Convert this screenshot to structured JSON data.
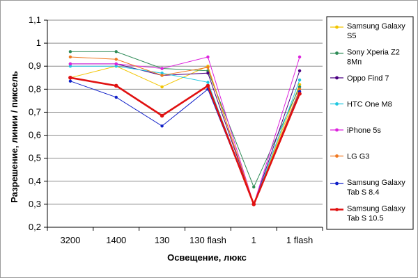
{
  "chart_data": {
    "type": "line",
    "title": "",
    "xlabel": "Освещение, люкс",
    "ylabel": "Разрешение, линии / пиксель",
    "categories": [
      "3200",
      "1400",
      "130",
      "130 flash",
      "1",
      "1 flash"
    ],
    "y_ticks": [
      "0,2",
      "0,3",
      "0,4",
      "0,5",
      "0,6",
      "0,7",
      "0,8",
      "0,9",
      "1",
      "1,1"
    ],
    "ylim": [
      0.2,
      1.1
    ],
    "grid": "horizontal",
    "legend_position": "right",
    "series": [
      {
        "name_lines": [
          "Samsung Galaxy",
          "S5"
        ],
        "color": "#f2c500",
        "values": [
          0.85,
          0.9,
          0.81,
          0.9,
          0.3,
          0.82
        ]
      },
      {
        "name_lines": [
          "Sony Xperia Z2",
          "8Мп"
        ],
        "color": "#2e8b57",
        "values": [
          0.963,
          0.963,
          0.89,
          0.88,
          0.375,
          0.81
        ]
      },
      {
        "name_lines": [
          "Oppo Find 7"
        ],
        "color": "#4b0082",
        "values": [
          0.91,
          0.91,
          0.86,
          0.87,
          0.3,
          0.88
        ]
      },
      {
        "name_lines": [
          "HTC One M8"
        ],
        "color": "#1fc7e0",
        "values": [
          0.9,
          0.9,
          0.87,
          0.83,
          0.3,
          0.84
        ]
      },
      {
        "name_lines": [
          "iPhone 5s"
        ],
        "color": "#dd22dd",
        "values": [
          0.91,
          0.91,
          0.89,
          0.94,
          0.3,
          0.94
        ]
      },
      {
        "name_lines": [
          "LG G3"
        ],
        "color": "#f07820",
        "values": [
          0.94,
          0.93,
          0.86,
          0.895,
          0.3,
          0.8
        ]
      },
      {
        "name_lines": [
          "Samsung Galaxy",
          "Tab S 8.4"
        ],
        "color": "#1020c8",
        "values": [
          0.835,
          0.765,
          0.64,
          0.8,
          0.3,
          0.79
        ]
      },
      {
        "name_lines": [
          "Samsung Galaxy",
          "Tab S 10.5"
        ],
        "color": "#e01010",
        "values": [
          0.85,
          0.815,
          0.685,
          0.815,
          0.3,
          0.78
        ],
        "bold": true
      }
    ]
  }
}
